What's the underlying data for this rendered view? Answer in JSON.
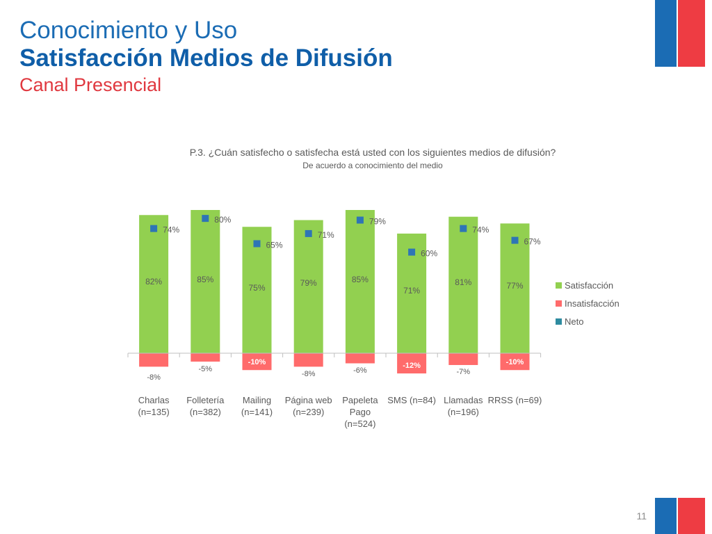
{
  "slide": {
    "title_line1": "Conocimiento y Uso",
    "title_line2": "Satisfacción Medios de Difusión",
    "title_line3": "Canal Presencial",
    "page_number": "11"
  },
  "colors": {
    "satisfaction": "#92d050",
    "dissatisfaction": "#ff6b6b",
    "net": "#2e75b6",
    "title_blue": "#1b6cb4",
    "title_red": "#e0383f"
  },
  "chart_data": {
    "type": "bar",
    "title": "P.3. ¿Cuán satisfecho o satisfecha está usted con los siguientes medios de difusión?",
    "subtitle": "De acuerdo a conocimiento del medio",
    "categories": [
      [
        "Charlas",
        "(n=135)"
      ],
      [
        "Folletería",
        "(n=382)"
      ],
      [
        "Mailing",
        "(n=141)"
      ],
      [
        "Página web",
        "(n=239)"
      ],
      [
        "Papeleta",
        "Pago",
        "(n=524)"
      ],
      [
        "SMS (n=84)"
      ],
      [
        "Llamadas",
        "(n=196)"
      ],
      [
        "RRSS (n=69)"
      ]
    ],
    "series": [
      {
        "name": "Satisfacción",
        "kind": "bar",
        "color": "#92d050",
        "values": [
          82,
          85,
          75,
          79,
          85,
          71,
          81,
          77
        ],
        "labels": [
          "82%",
          "85%",
          "75%",
          "79%",
          "85%",
          "71%",
          "81%",
          "77%"
        ]
      },
      {
        "name": "Insatisfacción",
        "kind": "bar",
        "color": "#ff6b6b",
        "values": [
          -8,
          -5,
          -10,
          -8,
          -6,
          -12,
          -7,
          -10
        ],
        "labels": [
          "-8%",
          "-5%",
          "-10%",
          "-8%",
          "-6%",
          "-12%",
          "-7%",
          "-10%"
        ]
      },
      {
        "name": "Neto",
        "kind": "marker",
        "color": "#2e75b6",
        "values": [
          74,
          80,
          65,
          71,
          79,
          60,
          74,
          67
        ],
        "labels": [
          "74%",
          "80%",
          "65%",
          "71%",
          "79%",
          "60%",
          "74%",
          "67%"
        ]
      }
    ],
    "ylim": [
      -12,
      85
    ],
    "legend_position": "right",
    "grid": false
  }
}
